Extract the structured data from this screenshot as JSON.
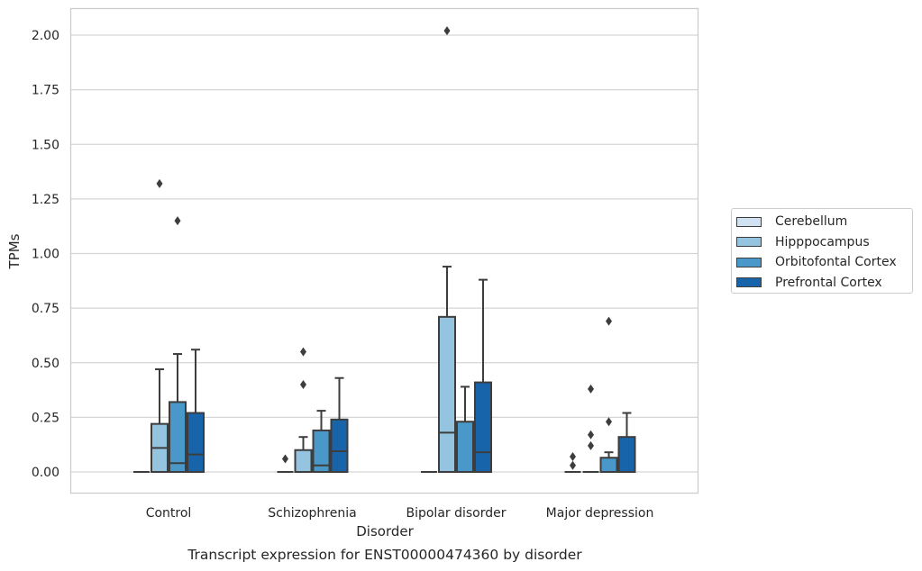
{
  "chart_data": {
    "type": "box",
    "title": "Transcript expression for ENST00000474360 by disorder",
    "xlabel": "Disorder",
    "ylabel": "TPMs",
    "ylim": [
      -0.1,
      2.12
    ],
    "yticks": [
      "0.00",
      "0.25",
      "0.50",
      "0.75",
      "1.00",
      "1.25",
      "1.50",
      "1.75",
      "2.00"
    ],
    "categories": [
      "Control",
      "Schizophrenia",
      "Bipolar disorder",
      "Major depression"
    ],
    "grid": true,
    "legend_position": "right",
    "series": [
      {
        "name": "Cerebellum",
        "color": "#d0e1f2",
        "boxes": [
          {
            "min": 0,
            "q1": 0,
            "median": 0,
            "q3": 0,
            "max": 0,
            "outliers": []
          },
          {
            "min": 0,
            "q1": 0,
            "median": 0,
            "q3": 0,
            "max": 0,
            "outliers": [
              0.06
            ]
          },
          {
            "min": 0,
            "q1": 0,
            "median": 0,
            "q3": 0,
            "max": 0,
            "outliers": []
          },
          {
            "min": 0,
            "q1": 0,
            "median": 0,
            "q3": 0,
            "max": 0,
            "outliers": [
              0.03,
              0.07
            ]
          }
        ]
      },
      {
        "name": "Hipppocampus",
        "color": "#94c4df",
        "boxes": [
          {
            "min": 0,
            "q1": 0,
            "median": 0.11,
            "q3": 0.22,
            "max": 0.47,
            "outliers": [
              1.32
            ]
          },
          {
            "min": 0,
            "q1": 0,
            "median": 0,
            "q3": 0.1,
            "max": 0.16,
            "outliers": [
              0.4,
              0.55
            ]
          },
          {
            "min": 0,
            "q1": 0,
            "median": 0.18,
            "q3": 0.71,
            "max": 0.94,
            "outliers": [
              2.02
            ]
          },
          {
            "min": 0,
            "q1": 0,
            "median": 0,
            "q3": 0,
            "max": 0,
            "outliers": [
              0.12,
              0.17,
              0.38
            ]
          }
        ]
      },
      {
        "name": "Orbitofontal Cortex",
        "color": "#4a98c9",
        "boxes": [
          {
            "min": 0,
            "q1": 0,
            "median": 0.04,
            "q3": 0.32,
            "max": 0.54,
            "outliers": [
              1.15
            ]
          },
          {
            "min": 0,
            "q1": 0,
            "median": 0.03,
            "q3": 0.19,
            "max": 0.28,
            "outliers": []
          },
          {
            "min": 0,
            "q1": 0,
            "median": 0,
            "q3": 0.23,
            "max": 0.39,
            "outliers": []
          },
          {
            "min": 0,
            "q1": 0,
            "median": 0,
            "q3": 0.065,
            "max": 0.09,
            "outliers": [
              0.23,
              0.69
            ]
          }
        ]
      },
      {
        "name": "Prefrontal Cortex",
        "color": "#1764ab",
        "boxes": [
          {
            "min": 0,
            "q1": 0,
            "median": 0.08,
            "q3": 0.27,
            "max": 0.56,
            "outliers": []
          },
          {
            "min": 0,
            "q1": 0,
            "median": 0.095,
            "q3": 0.24,
            "max": 0.43,
            "outliers": []
          },
          {
            "min": 0,
            "q1": 0,
            "median": 0.09,
            "q3": 0.41,
            "max": 0.88,
            "outliers": []
          },
          {
            "min": 0,
            "q1": 0,
            "median": 0,
            "q3": 0.16,
            "max": 0.27,
            "outliers": []
          }
        ]
      }
    ]
  }
}
